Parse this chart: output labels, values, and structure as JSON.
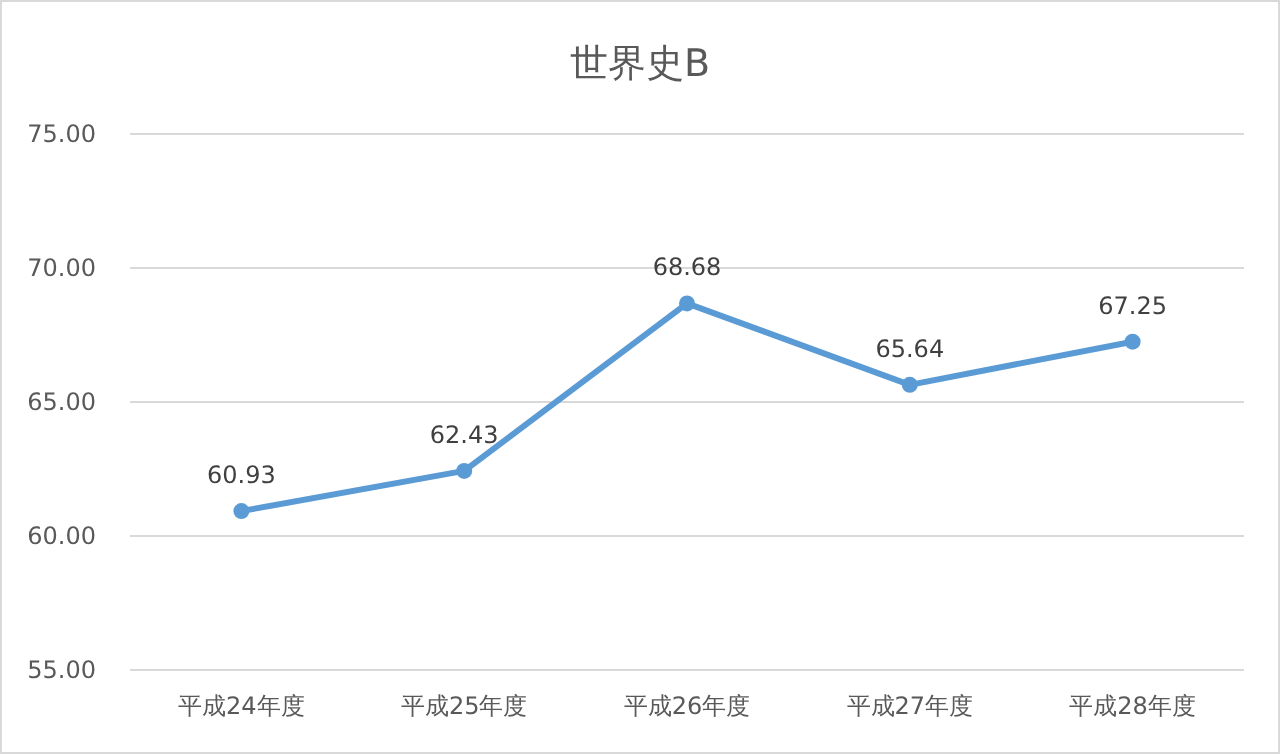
{
  "chart_data": {
    "type": "line",
    "title": "世界史B",
    "categories": [
      "平成24年度",
      "平成25年度",
      "平成26年度",
      "平成27年度",
      "平成28年度"
    ],
    "series": [
      {
        "color": "#5b9bd5",
        "values": [
          60.93,
          62.43,
          68.68,
          65.64,
          67.25
        ]
      }
    ],
    "ylim": [
      55,
      75
    ],
    "yticks": [
      {
        "value": 55,
        "label": "55.00"
      },
      {
        "value": 60,
        "label": "60.00"
      },
      {
        "value": 65,
        "label": "65.00"
      },
      {
        "value": 70,
        "label": "70.00"
      },
      {
        "value": 75,
        "label": "75.00"
      }
    ],
    "grid": "y",
    "marker": "circle",
    "line_style": "solid",
    "data_labels": true
  }
}
